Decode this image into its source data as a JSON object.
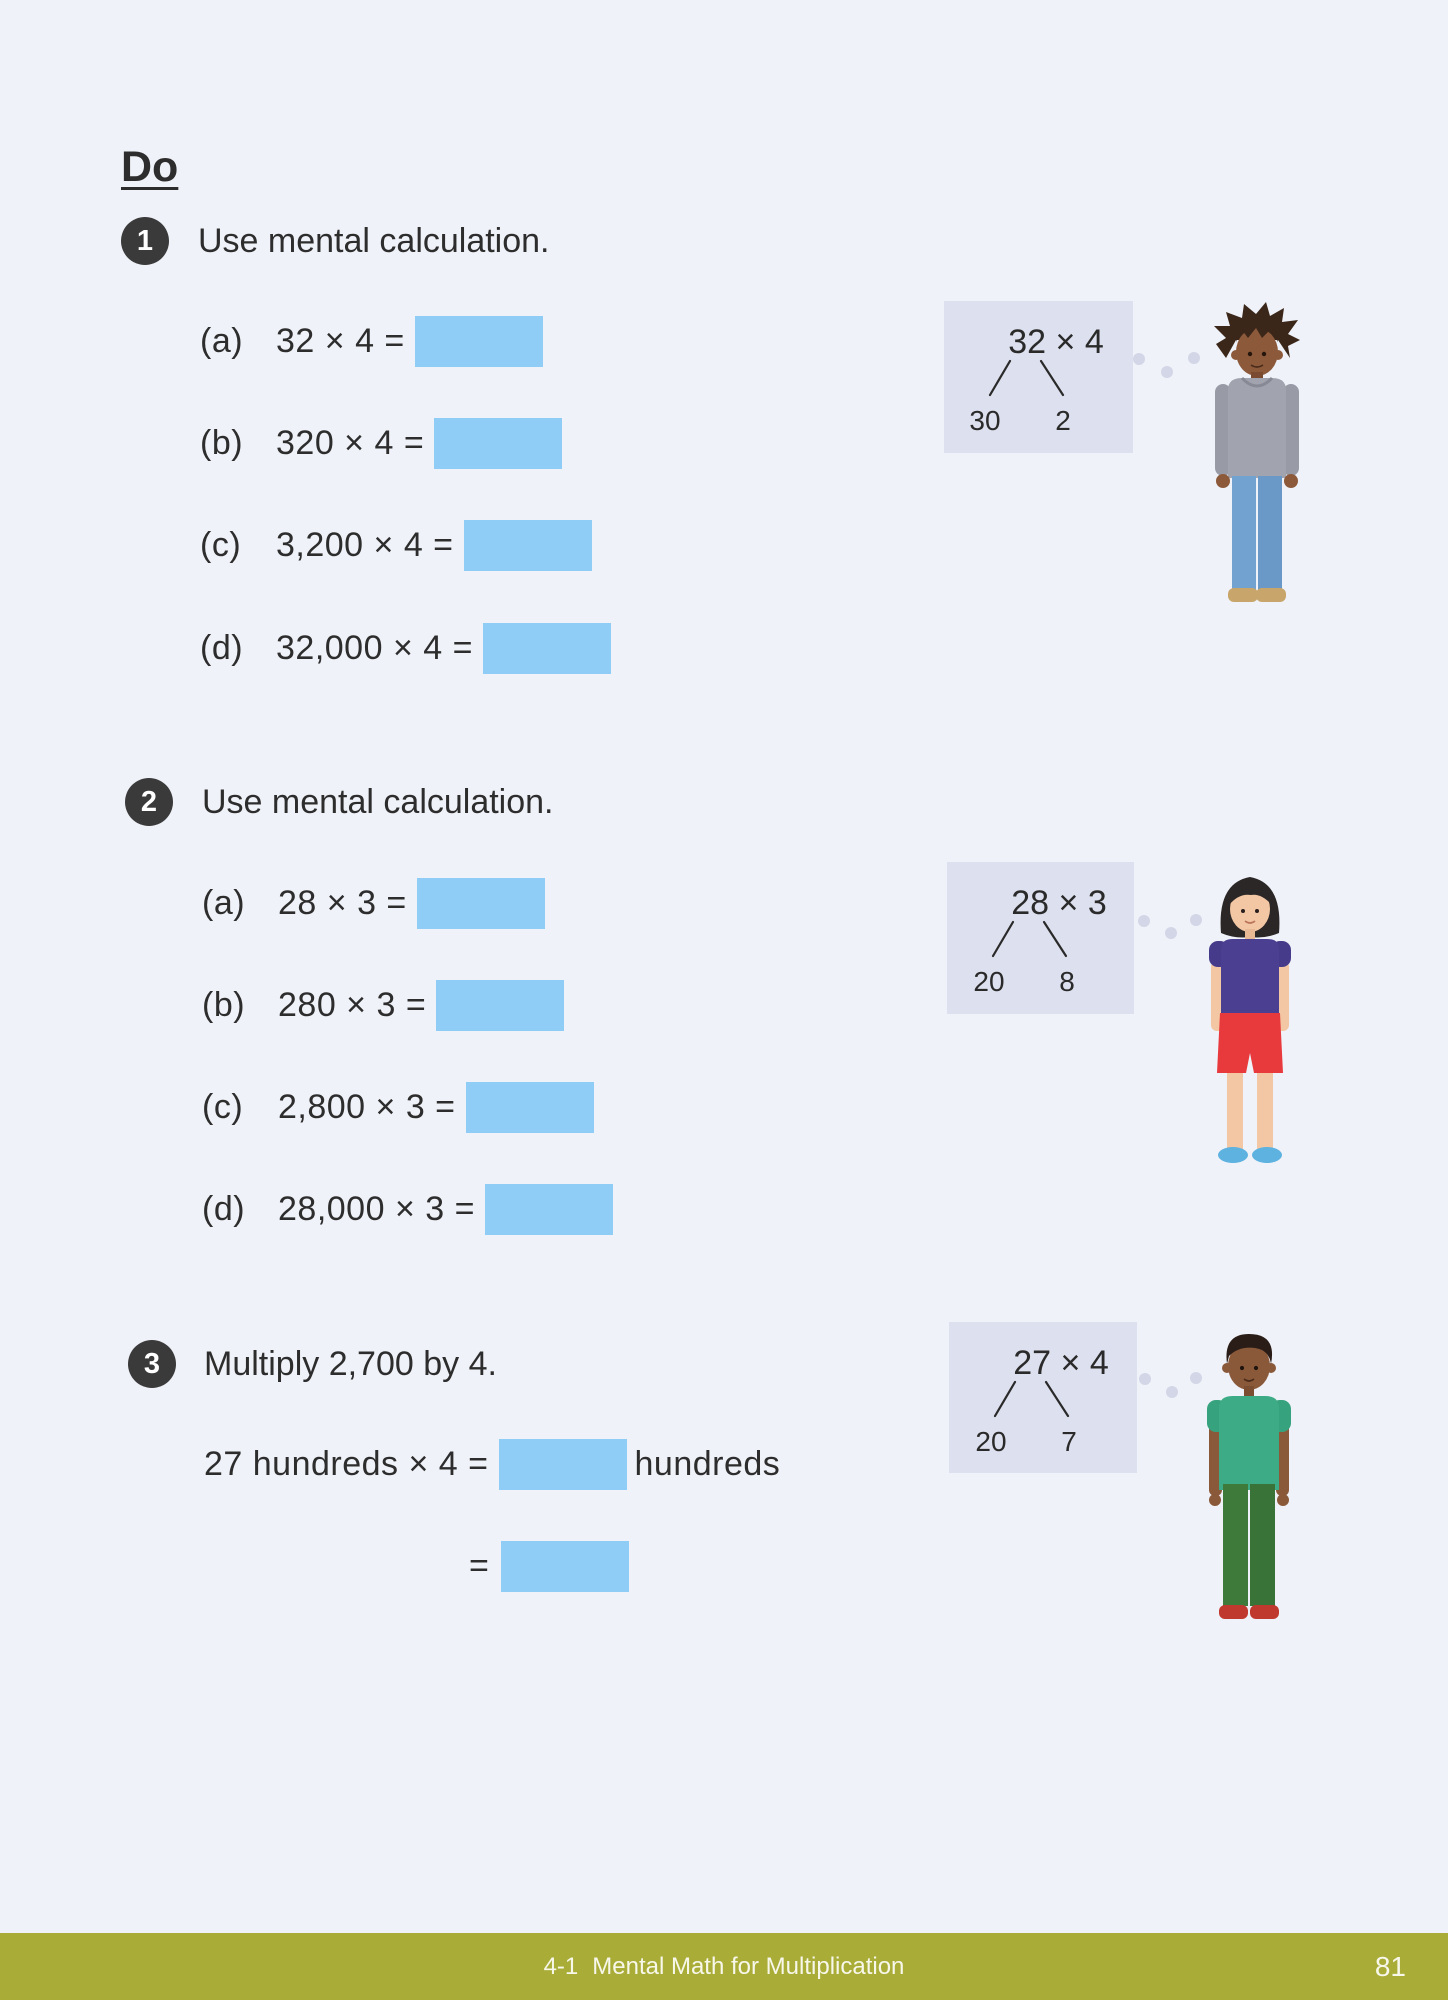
{
  "heading": "Do",
  "problems": [
    {
      "number": "1",
      "instruction": "Use mental calculation.",
      "items": [
        {
          "label": "(a)",
          "expression": "32 × 4 ="
        },
        {
          "label": "(b)",
          "expression": "320 × 4 ="
        },
        {
          "label": "(c)",
          "expression": "3,200 × 4 ="
        },
        {
          "label": "(d)",
          "expression": "32,000 × 4 ="
        }
      ],
      "split_diagram": {
        "expression": "32 × 4",
        "left_part": "30",
        "right_part": "2"
      },
      "illustration": "boy-grey-hoodie-icon"
    },
    {
      "number": "2",
      "instruction": "Use mental calculation.",
      "items": [
        {
          "label": "(a)",
          "expression": "28 × 3 ="
        },
        {
          "label": "(b)",
          "expression": "280 × 3 ="
        },
        {
          "label": "(c)",
          "expression": "2,800 × 3 ="
        },
        {
          "label": "(d)",
          "expression": "28,000 × 3 ="
        }
      ],
      "split_diagram": {
        "expression": "28 × 3",
        "left_part": "20",
        "right_part": "8"
      },
      "illustration": "girl-purple-top-icon"
    },
    {
      "number": "3",
      "instruction": "Multiply 2,700 by 4.",
      "lines": [
        {
          "before": "27 hundreds × 4 =",
          "after": "hundreds"
        },
        {
          "before": "="
        }
      ],
      "split_diagram": {
        "expression": "27 × 4",
        "left_part": "20",
        "right_part": "7"
      },
      "illustration": "boy-green-shirt-icon"
    }
  ],
  "footer": {
    "lesson_number": "4-1",
    "lesson_title": "Mental Math for Multiplication",
    "page_number": "81"
  },
  "colors": {
    "page_background": "#eff2f8",
    "text": "#2d2d2d",
    "number_badge": "#3a3a3a",
    "answer_box": "#8fcdf6",
    "diagram_background": "#dde0ee",
    "thought_dots": "#d3d6e6",
    "footer_bar": "#aaac38",
    "footer_text": "#f7f7ea"
  }
}
